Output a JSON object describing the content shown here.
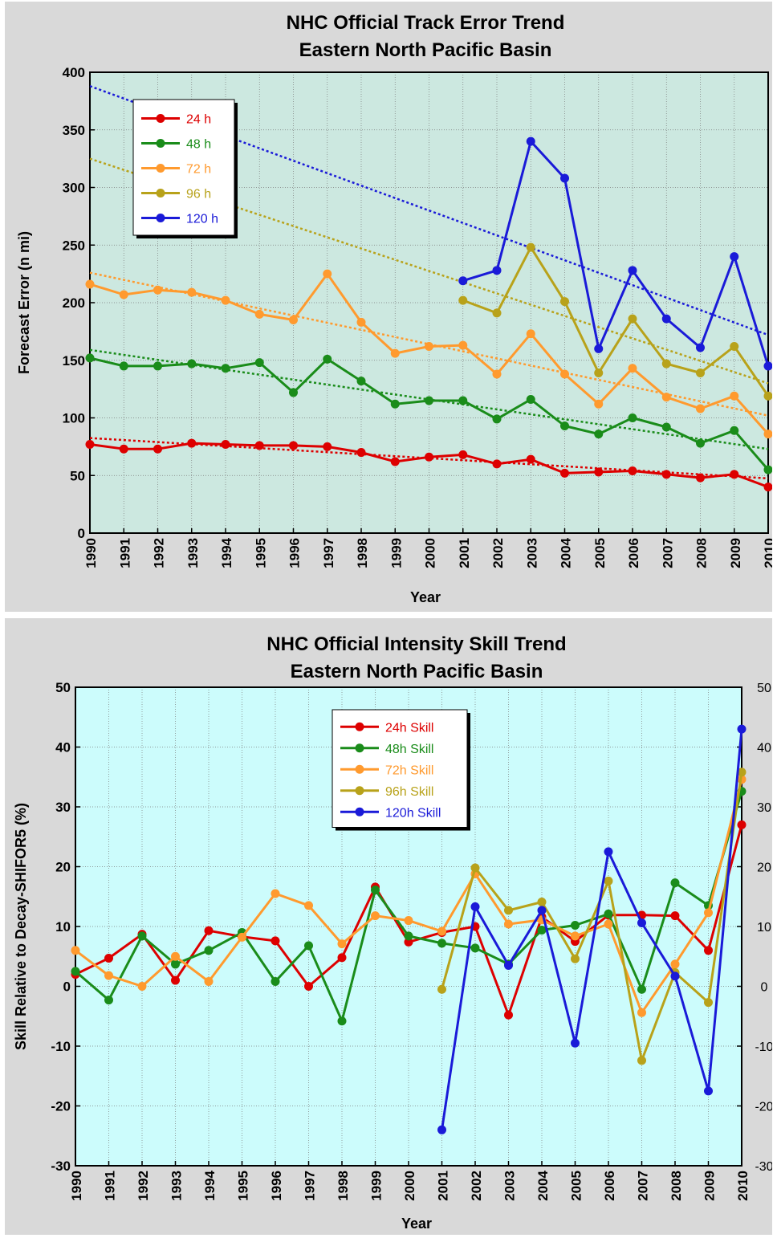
{
  "chart_data": [
    {
      "type": "line",
      "title": "NHC Official Track Error Trend",
      "subtitle": "Eastern North Pacific Basin",
      "xlabel": "Year",
      "ylabel": "Forecast Error (n mi)",
      "x": [
        1990,
        1991,
        1992,
        1993,
        1994,
        1995,
        1996,
        1997,
        1998,
        1999,
        2000,
        2001,
        2002,
        2003,
        2004,
        2005,
        2006,
        2007,
        2008,
        2009,
        2010
      ],
      "x_tick_labels": [
        "1990",
        "1991",
        "1992",
        "1993",
        "1994",
        "1995",
        "1996",
        "1997",
        "1998",
        "1999",
        "2000",
        "2001",
        "2002",
        "2003",
        "2004",
        "2005",
        "2006",
        "2007",
        "2008",
        "2009",
        "2010"
      ],
      "xlim": [
        1990,
        2010
      ],
      "ylim": [
        0,
        400
      ],
      "y_ticks": [
        0,
        50,
        100,
        150,
        200,
        250,
        300,
        350,
        400
      ],
      "y_tick_labels": [
        "0",
        "50",
        "100",
        "150",
        "200",
        "250",
        "300",
        "350",
        "400"
      ],
      "grid": true,
      "legend_position": "top-left",
      "background": "#cce8e0",
      "series": [
        {
          "name": "24 h",
          "color": "#dd0000",
          "values": [
            77,
            73,
            73,
            78,
            77,
            76,
            76,
            75,
            70,
            62,
            66,
            68,
            60,
            64,
            52,
            53,
            54,
            51,
            48,
            51,
            40
          ],
          "trend": [
            82.5,
            47.5
          ]
        },
        {
          "name": "48 h",
          "color": "#1a8c1a",
          "values": [
            152,
            145,
            145,
            147,
            143,
            148,
            122,
            151,
            132,
            112,
            115,
            115,
            99,
            116,
            93,
            86,
            100,
            92,
            78,
            89,
            55
          ],
          "trend": [
            159,
            73
          ]
        },
        {
          "name": "72 h",
          "color": "#ff9a2e",
          "values": [
            216,
            207,
            211,
            209,
            202,
            190,
            185,
            225,
            183,
            156,
            162,
            163,
            138,
            173,
            138,
            112,
            143,
            118,
            108,
            119,
            86
          ],
          "trend": [
            226,
            102
          ]
        },
        {
          "name": "96 h",
          "color": "#b8a21a",
          "values": [
            null,
            null,
            null,
            null,
            null,
            null,
            null,
            null,
            null,
            null,
            null,
            202,
            191,
            248,
            201,
            139,
            186,
            147,
            139,
            162,
            119
          ],
          "trend": [
            325,
            130
          ]
        },
        {
          "name": "120 h",
          "color": "#1a1ad8",
          "values": [
            null,
            null,
            null,
            null,
            null,
            null,
            null,
            null,
            null,
            null,
            null,
            219,
            228,
            340,
            308,
            160,
            228,
            186,
            161,
            240,
            145
          ],
          "trend": [
            388,
            172
          ]
        }
      ]
    },
    {
      "type": "line",
      "title": "NHC Official Intensity Skill Trend",
      "subtitle": "Eastern North Pacific Basin",
      "xlabel": "Year",
      "ylabel": "Skill Relative to Decay-SHIFOR5 (%)",
      "x": [
        1990,
        1991,
        1992,
        1993,
        1994,
        1995,
        1996,
        1997,
        1998,
        1999,
        2000,
        2001,
        2002,
        2003,
        2004,
        2005,
        2006,
        2007,
        2008,
        2009,
        2010
      ],
      "x_tick_labels": [
        "1990",
        "1991",
        "1992",
        "1993",
        "1994",
        "1995",
        "1996",
        "1997",
        "1998",
        "1999",
        "2000",
        "2001",
        "2002",
        "2003",
        "2004",
        "2005",
        "2006",
        "2007",
        "2008",
        "2009",
        "2010"
      ],
      "xlim": [
        1990,
        2010
      ],
      "ylim": [
        -30,
        50
      ],
      "y_ticks": [
        -30,
        -20,
        -10,
        0,
        10,
        20,
        30,
        40,
        50
      ],
      "y_tick_labels": [
        "-30",
        "-20",
        "-10",
        "0",
        "10",
        "20",
        "30",
        "40",
        "50"
      ],
      "grid": true,
      "legend_position": "top-center",
      "background": "#ccfcfc",
      "series": [
        {
          "name": "24h Skill",
          "color": "#dd0000",
          "values": [
            2,
            4.7,
            8.7,
            1,
            9.3,
            8.3,
            7.6,
            0,
            4.8,
            16.6,
            7.4,
            9,
            10,
            -4.8,
            11.6,
            7.5,
            11.9,
            11.9,
            11.8,
            6,
            27
          ]
        },
        {
          "name": "48h Skill",
          "color": "#1a8c1a",
          "values": [
            2.5,
            -2.3,
            8.4,
            3.7,
            6,
            9,
            0.8,
            6.8,
            -5.8,
            16.1,
            8.4,
            7.2,
            6.4,
            3.7,
            9.4,
            10.2,
            12.1,
            -0.5,
            17.3,
            13.5,
            32.6
          ]
        },
        {
          "name": "72h Skill",
          "color": "#ff9a2e",
          "values": [
            6,
            1.8,
            0,
            5,
            0.8,
            8.2,
            15.5,
            13.5,
            7.1,
            11.8,
            11,
            9.2,
            18.8,
            10.4,
            11.1,
            8.4,
            10.4,
            -4.4,
            3.7,
            12.3,
            34.6
          ]
        },
        {
          "name": "96h Skill",
          "color": "#b8a21a",
          "values": [
            null,
            null,
            null,
            null,
            null,
            null,
            null,
            null,
            null,
            null,
            null,
            -0.5,
            19.8,
            12.7,
            14.1,
            4.6,
            17.6,
            -12.4,
            2.3,
            -2.7,
            35.8
          ]
        },
        {
          "name": "120h Skill",
          "color": "#1a1ad8",
          "values": [
            null,
            null,
            null,
            null,
            null,
            null,
            null,
            null,
            null,
            null,
            null,
            -24,
            13.3,
            3.5,
            12.7,
            -9.5,
            22.5,
            10.6,
            1.7,
            -17.5,
            43
          ]
        }
      ]
    }
  ]
}
